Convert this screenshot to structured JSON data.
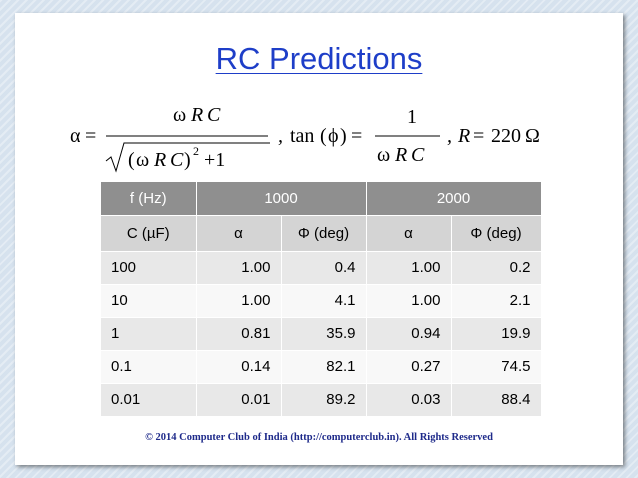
{
  "slide": {
    "title": "RC Predictions",
    "formula": {
      "alpha": "α",
      "eq": "=",
      "omega": "ω",
      "R": "R",
      "C": "C",
      "sq": "2",
      "plus_one": "+1",
      "comma": ",",
      "tan": "tan",
      "phi": "ϕ",
      "one": "1",
      "r_value": "220",
      "ohm": "Ω"
    },
    "table": {
      "header_freq_label": "f (Hz)",
      "header_freq1": "1000",
      "header_freq2": "2000",
      "sub_headers": [
        "C (µF)",
        "α",
        "Φ (deg)",
        "α",
        "Φ (deg)"
      ],
      "rows": [
        [
          "100",
          "1.00",
          "0.4",
          "1.00",
          "0.2"
        ],
        [
          "10",
          "1.00",
          "4.1",
          "1.00",
          "2.1"
        ],
        [
          "1",
          "0.81",
          "35.9",
          "0.94",
          "19.9"
        ],
        [
          "0.1",
          "0.14",
          "82.1",
          "0.27",
          "74.5"
        ],
        [
          "0.01",
          "0.01",
          "89.2",
          "0.03",
          "88.4"
        ]
      ]
    },
    "footer": "© 2014 Computer Club of India (http://computerclub.in). All Rights Reserved"
  },
  "colors": {
    "title": "#1e3ec8",
    "header_dark": "#8f8f8f",
    "header_light": "#d4d4d4",
    "row_alt": "#e8e8e8",
    "footer": "#1e2a8a",
    "background": "#d6e2ee"
  }
}
